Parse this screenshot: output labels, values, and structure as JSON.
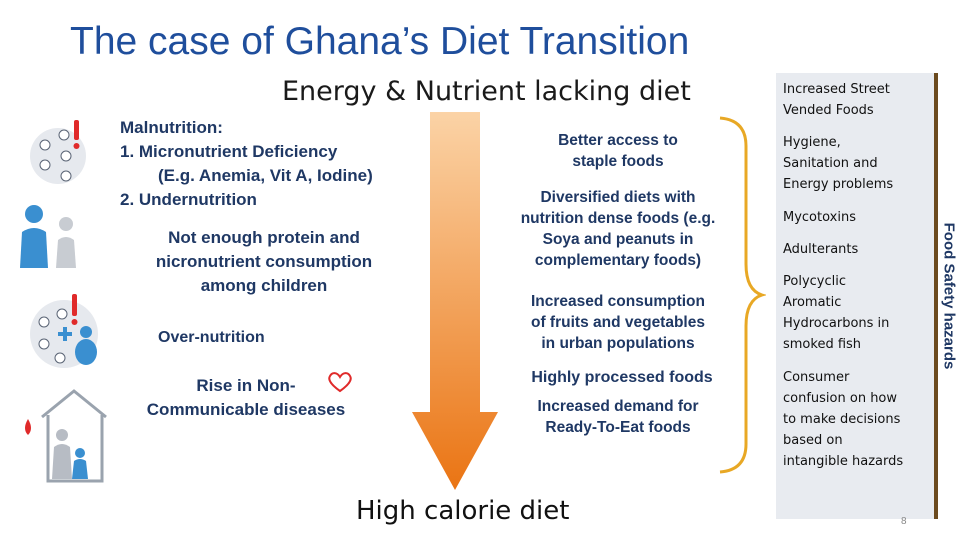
{
  "title": "The case of Ghana’s Diet Transition",
  "subtitle": "Energy & Nutrient lacking diet",
  "left": {
    "malnutrition_heading": "Malnutrition:",
    "malnutrition_item1": "1.   Micronutrient Deficiency",
    "malnutrition_item1_detail": "(E.g. Anemia, Vit A, Iodine)",
    "malnutrition_item2": "2.   Undernutrition",
    "protein_line1": "Not enough protein and",
    "protein_line2": "nicronutrient consumption",
    "protein_line3": "among children",
    "overnutrition": "Over-nutrition",
    "ncd_line1": "Rise in Non-",
    "ncd_line2": "Communicable diseases"
  },
  "middle": {
    "access_line1": "Better access to",
    "access_line2": "staple foods",
    "diversified_line1": "Diversified diets with",
    "diversified_line2": "nutrition dense foods (e.g.",
    "diversified_line3": "Soya and peanuts in",
    "diversified_line4": "complementary foods)",
    "fruits_line1": "Increased consumption",
    "fruits_line2": "of fruits and vegetables",
    "fruits_line3": "in urban populations",
    "processed": "Highly processed foods",
    "rte_line1": "Increased demand for",
    "rte_line2": "Ready-To-Eat foods"
  },
  "bottom_label": "High calorie diet",
  "sidebar": {
    "label": "Food Safety hazards",
    "items": [
      {
        "lines": [
          "Increased Street",
          "Vended Foods"
        ]
      },
      {
        "lines": [
          "Hygiene,",
          "Sanitation and",
          "Energy problems"
        ]
      },
      {
        "lines": [
          "Mycotoxins"
        ]
      },
      {
        "lines": [
          "Adulterants"
        ]
      },
      {
        "lines": [
          "Polycyclic",
          "Aromatic",
          "Hydrocarbons in",
          "smoked fish"
        ]
      },
      {
        "lines": [
          "Consumer",
          "confusion on  how",
          "to make decisions",
          "based on",
          "intangible hazards"
        ]
      }
    ]
  },
  "page_number": "8",
  "colors": {
    "title": "#1f4e9c",
    "body_text": "#1f3864",
    "arrow_top": "#fbd3a6",
    "arrow_bottom": "#ea7413",
    "bracket": "#e8a825",
    "panel_bg": "#e8ebf0",
    "sidebar_bar": "#6b4a1e",
    "icon_red": "#e02a2a",
    "icon_blue": "#3a8fd0"
  },
  "icons": [
    "vitamin-circle-icon",
    "adult-child-figures-icon",
    "overnutrition-circle-icon",
    "heart-icon",
    "house-family-icon"
  ]
}
